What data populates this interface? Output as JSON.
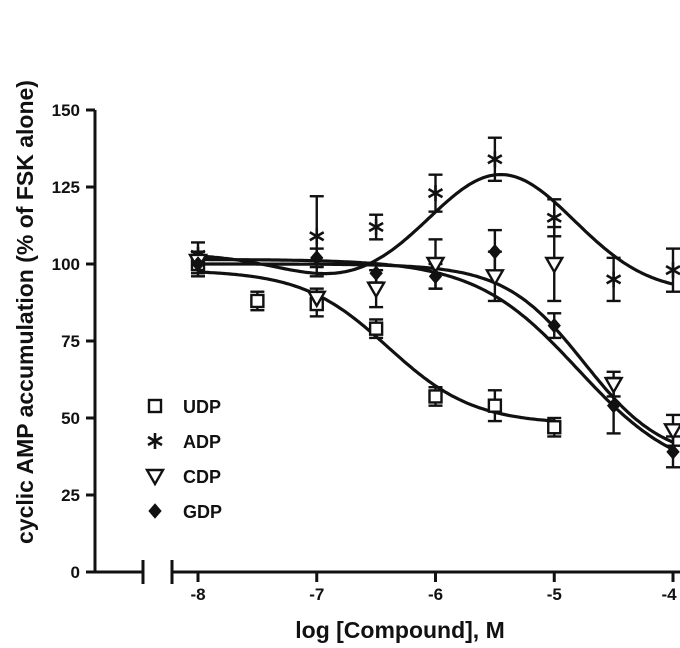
{
  "chart_data": {
    "type": "scatter",
    "title": "",
    "xlabel": "log [Compound], M",
    "ylabel": "cyclic AMP accumulation (% of FSK alone)",
    "xlim": [
      -8,
      -4
    ],
    "ylim": [
      0,
      150
    ],
    "x_ticks": [
      "-8",
      "-7",
      "-6",
      "-5",
      "-4"
    ],
    "y_ticks": [
      "0",
      "25",
      "50",
      "75",
      "100",
      "125",
      "150"
    ],
    "axis_break": true,
    "grid": false,
    "legend_position": "bottom-left",
    "series": [
      {
        "name": "UDP",
        "marker": "open-square",
        "x": [
          -8,
          -7.5,
          -7,
          -6.5,
          -6,
          -5.5,
          -5
        ],
        "y": [
          100,
          88,
          87,
          79,
          57,
          54,
          47
        ],
        "err": [
          4,
          3,
          4,
          3,
          3,
          5,
          3
        ]
      },
      {
        "name": "ADP",
        "marker": "asterisk",
        "x": [
          -8,
          -7,
          -6.5,
          -6,
          -5.5,
          -5,
          -4.5,
          -4
        ],
        "y": [
          103,
          109,
          112,
          123,
          134,
          115,
          95,
          98
        ],
        "err": [
          4,
          13,
          4,
          6,
          7,
          6,
          7,
          7
        ]
      },
      {
        "name": "CDP",
        "marker": "open-triangle-down",
        "x": [
          -8,
          -7,
          -6.5,
          -6,
          -5.5,
          -5,
          -4.5,
          -4
        ],
        "y": [
          101,
          89,
          92,
          100,
          96,
          100,
          61,
          46
        ],
        "err": [
          3,
          3,
          6,
          8,
          8,
          12,
          4,
          5
        ]
      },
      {
        "name": "GDP",
        "marker": "filled-diamond",
        "x": [
          -8,
          -7,
          -6.5,
          -6,
          -5.5,
          -5,
          -4.5,
          -4
        ],
        "y": [
          100,
          102,
          97,
          96,
          104,
          80,
          54,
          39
        ],
        "err": [
          3,
          3,
          3,
          4,
          7,
          4,
          9,
          5
        ]
      }
    ],
    "fit_curves": [
      {
        "series": "UDP",
        "bottom": 48,
        "top": 98,
        "logEC50": -6.4,
        "hill": 1.2
      },
      {
        "series": "ADP",
        "type": "bell"
      },
      {
        "series": "CDP",
        "bottom": 36,
        "top": 100,
        "logEC50": -4.75,
        "hill": 1.3
      },
      {
        "series": "GDP",
        "bottom": 30,
        "top": 101.5,
        "logEC50": -4.8,
        "hill": 1.0
      }
    ]
  }
}
